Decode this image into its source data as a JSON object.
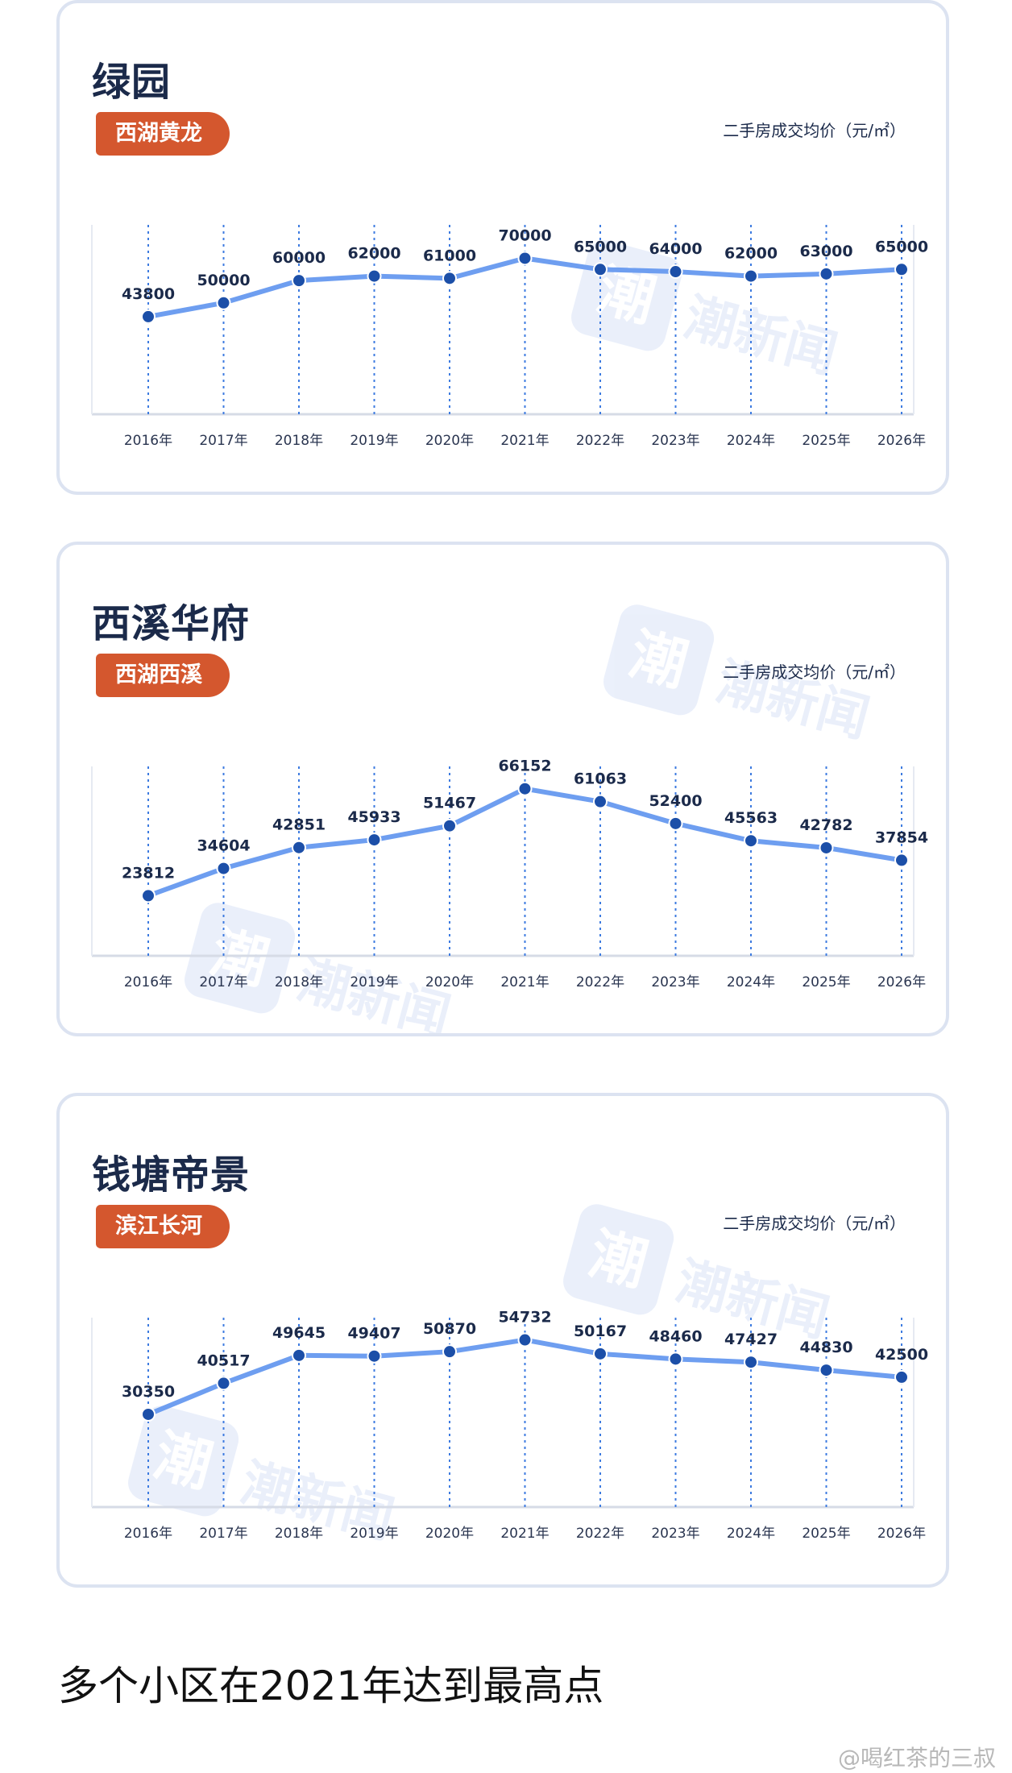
{
  "charts_meta": [
    {
      "name": "绿园",
      "district": "西湖黄龙",
      "unit": "二手房成交均价（元/㎡）"
    },
    {
      "name": "西溪华府",
      "district": "西湖西溪",
      "unit": "二手房成交均价（元/㎡）"
    },
    {
      "name": "钱塘帝景",
      "district": "滨江长河",
      "unit": "二手房成交均价（元/㎡）"
    }
  ],
  "watermark": {
    "glyph": "潮",
    "text": "潮新闻"
  },
  "footer": {
    "heading": "多个小区在2021年达到最高点"
  },
  "credit": "@喝红茶的三叔",
  "colors": {
    "line": "#6e9ef0",
    "point": "#1c4fa8",
    "badge": "#d4572e",
    "grid": "#3d7be0"
  },
  "chart_data": [
    {
      "type": "line",
      "title": "绿园",
      "categories": [
        "2016年",
        "2017年",
        "2018年",
        "2019年",
        "2020年",
        "2021年",
        "2022年",
        "2023年",
        "2024年",
        "2025年",
        "2026年"
      ],
      "series": [
        {
          "values": [
            43800,
            50000,
            60000,
            62000,
            61000,
            70000,
            65000,
            64000,
            62000,
            63000,
            65000
          ]
        }
      ],
      "ylabel": "二手房成交均价（元/㎡）",
      "ylim": [
        0,
        85000
      ],
      "grid": "vertical-dotted",
      "data_labels": true
    },
    {
      "type": "line",
      "title": "西溪华府",
      "categories": [
        "2016年",
        "2017年",
        "2018年",
        "2019年",
        "2020年",
        "2021年",
        "2022年",
        "2023年",
        "2024年",
        "2025年",
        "2026年"
      ],
      "series": [
        {
          "values": [
            23812,
            34604,
            42851,
            45933,
            51467,
            66152,
            61063,
            52400,
            45563,
            42782,
            37854
          ]
        }
      ],
      "ylabel": "二手房成交均价（元/㎡）",
      "ylim": [
        0,
        75000
      ],
      "grid": "vertical-dotted",
      "data_labels": true
    },
    {
      "type": "line",
      "title": "钱塘帝景",
      "categories": [
        "2016年",
        "2017年",
        "2018年",
        "2019年",
        "2020年",
        "2021年",
        "2022年",
        "2023年",
        "2024年",
        "2025年",
        "2026年"
      ],
      "series": [
        {
          "values": [
            30350,
            40517,
            49645,
            49407,
            50870,
            54732,
            50167,
            48460,
            47427,
            44830,
            42500
          ]
        }
      ],
      "ylabel": "二手房成交均价（元/㎡）",
      "ylim": [
        0,
        62000
      ],
      "grid": "vertical-dotted",
      "data_labels": true
    }
  ]
}
